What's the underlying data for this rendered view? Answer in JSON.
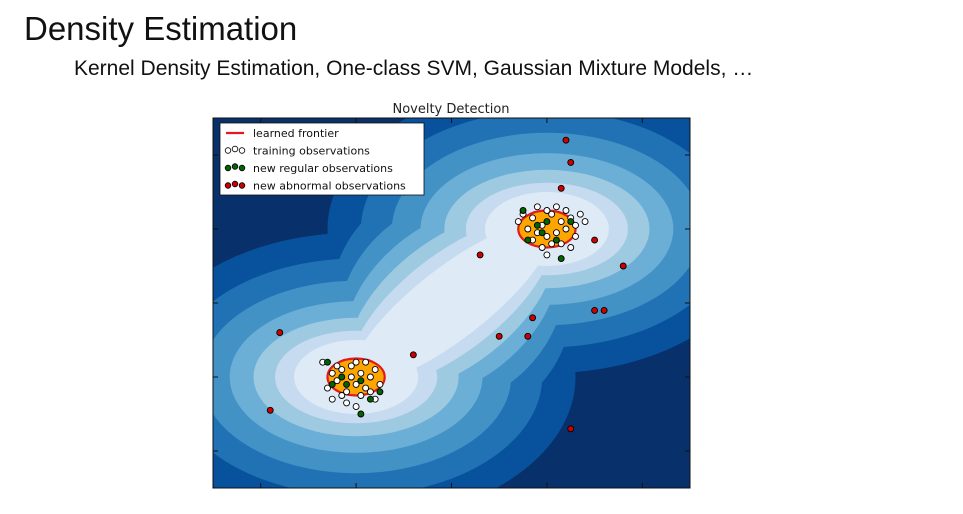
{
  "slide": {
    "title": "Density Estimation",
    "subtitle": "Kernel Density Estimation, One-class SVM, Gaussian Mixture Models, …"
  },
  "chart_data": {
    "type": "scatter",
    "title": "Novelty Detection",
    "xlabel": "",
    "ylabel": "",
    "xlim": [
      -5,
      5
    ],
    "ylim": [
      -5,
      5
    ],
    "grid": false,
    "legend_position": "top-left",
    "colormap": [
      "#08306b",
      "#08519c",
      "#2171b5",
      "#4292c6",
      "#6baed6",
      "#9ecae1",
      "#c6dbef",
      "#deebf7"
    ],
    "frontier_color": "#e31a1c",
    "inside_fill": "#ffa500",
    "legend": [
      {
        "label": "learned frontier",
        "marker": "line",
        "color": "#e31a1c"
      },
      {
        "label": "training observations",
        "marker": "dots",
        "color": "#ffffff"
      },
      {
        "label": "new regular observations",
        "marker": "dots",
        "color": "#006400"
      },
      {
        "label": "new abnormal observations",
        "marker": "dots",
        "color": "#cc0000"
      }
    ],
    "clusters": [
      {
        "center": [
          -2,
          -2
        ],
        "radius": [
          0.6,
          0.5
        ]
      },
      {
        "center": [
          2,
          2
        ],
        "radius": [
          0.6,
          0.5
        ]
      }
    ],
    "series": [
      {
        "name": "training observations",
        "color": "#ffffff",
        "points": [
          [
            -2.3,
            -1.8
          ],
          [
            -2.1,
            -1.7
          ],
          [
            -1.9,
            -1.9
          ],
          [
            -2.4,
            -2.1
          ],
          [
            -2.0,
            -2.2
          ],
          [
            -1.7,
            -2.0
          ],
          [
            -2.2,
            -2.4
          ],
          [
            -1.8,
            -2.3
          ],
          [
            -2.5,
            -1.9
          ],
          [
            -2.0,
            -1.6
          ],
          [
            -1.6,
            -1.8
          ],
          [
            -2.3,
            -2.5
          ],
          [
            -1.9,
            -2.5
          ],
          [
            -1.5,
            -2.2
          ],
          [
            -2.6,
            -2.3
          ],
          [
            -2.1,
            -2.0
          ],
          [
            -1.8,
            -1.6
          ],
          [
            -2.4,
            -1.7
          ],
          [
            -1.7,
            -2.4
          ],
          [
            -2.2,
            -2.7
          ],
          [
            -1.6,
            -2.6
          ],
          [
            -2.5,
            -2.6
          ],
          [
            -2.7,
            -1.6
          ],
          [
            -2.0,
            -2.8
          ],
          [
            1.7,
            2.3
          ],
          [
            1.9,
            2.1
          ],
          [
            2.1,
            2.4
          ],
          [
            2.3,
            2.2
          ],
          [
            1.8,
            1.9
          ],
          [
            2.0,
            1.8
          ],
          [
            2.2,
            1.9
          ],
          [
            2.4,
            2.0
          ],
          [
            1.6,
            2.0
          ],
          [
            2.5,
            2.3
          ],
          [
            2.1,
            1.6
          ],
          [
            1.9,
            1.5
          ],
          [
            2.3,
            1.6
          ],
          [
            2.6,
            2.1
          ],
          [
            1.5,
            2.4
          ],
          [
            2.0,
            2.5
          ],
          [
            2.4,
            2.5
          ],
          [
            1.7,
            1.7
          ],
          [
            2.6,
            1.8
          ],
          [
            2.2,
            2.6
          ],
          [
            1.8,
            2.6
          ],
          [
            2.7,
            2.4
          ],
          [
            2.5,
            1.5
          ],
          [
            1.4,
            2.2
          ],
          [
            2.8,
            2.2
          ],
          [
            2.0,
            1.3
          ]
        ]
      },
      {
        "name": "new regular observations",
        "color": "#006400",
        "points": [
          [
            -2.6,
            -1.6
          ],
          [
            -2.2,
            -2.2
          ],
          [
            -1.9,
            -2.1
          ],
          [
            -1.7,
            -2.6
          ],
          [
            -2.5,
            -2.2
          ],
          [
            -1.5,
            -2.4
          ],
          [
            -1.9,
            -3.0
          ],
          [
            -2.3,
            -2.0
          ],
          [
            1.5,
            2.5
          ],
          [
            1.8,
            2.1
          ],
          [
            2.0,
            2.2
          ],
          [
            2.2,
            1.7
          ],
          [
            1.6,
            1.7
          ],
          [
            2.3,
            1.2
          ],
          [
            1.9,
            1.9
          ],
          [
            2.5,
            2.2
          ]
        ]
      },
      {
        "name": "new abnormal observations",
        "color": "#cc0000",
        "points": [
          [
            -1.0,
            3.0
          ],
          [
            0.6,
            1.3
          ],
          [
            -3.6,
            -0.8
          ],
          [
            -0.8,
            -1.4
          ],
          [
            -3.8,
            -2.9
          ],
          [
            1.0,
            -0.9
          ],
          [
            1.6,
            -0.9
          ],
          [
            1.7,
            -0.4
          ],
          [
            3.0,
            -0.2
          ],
          [
            3.2,
            -0.2
          ],
          [
            3.6,
            1.0
          ],
          [
            2.3,
            3.1
          ],
          [
            2.5,
            3.8
          ],
          [
            2.4,
            4.4
          ],
          [
            3.0,
            1.7
          ],
          [
            2.5,
            -3.4
          ]
        ]
      }
    ]
  }
}
